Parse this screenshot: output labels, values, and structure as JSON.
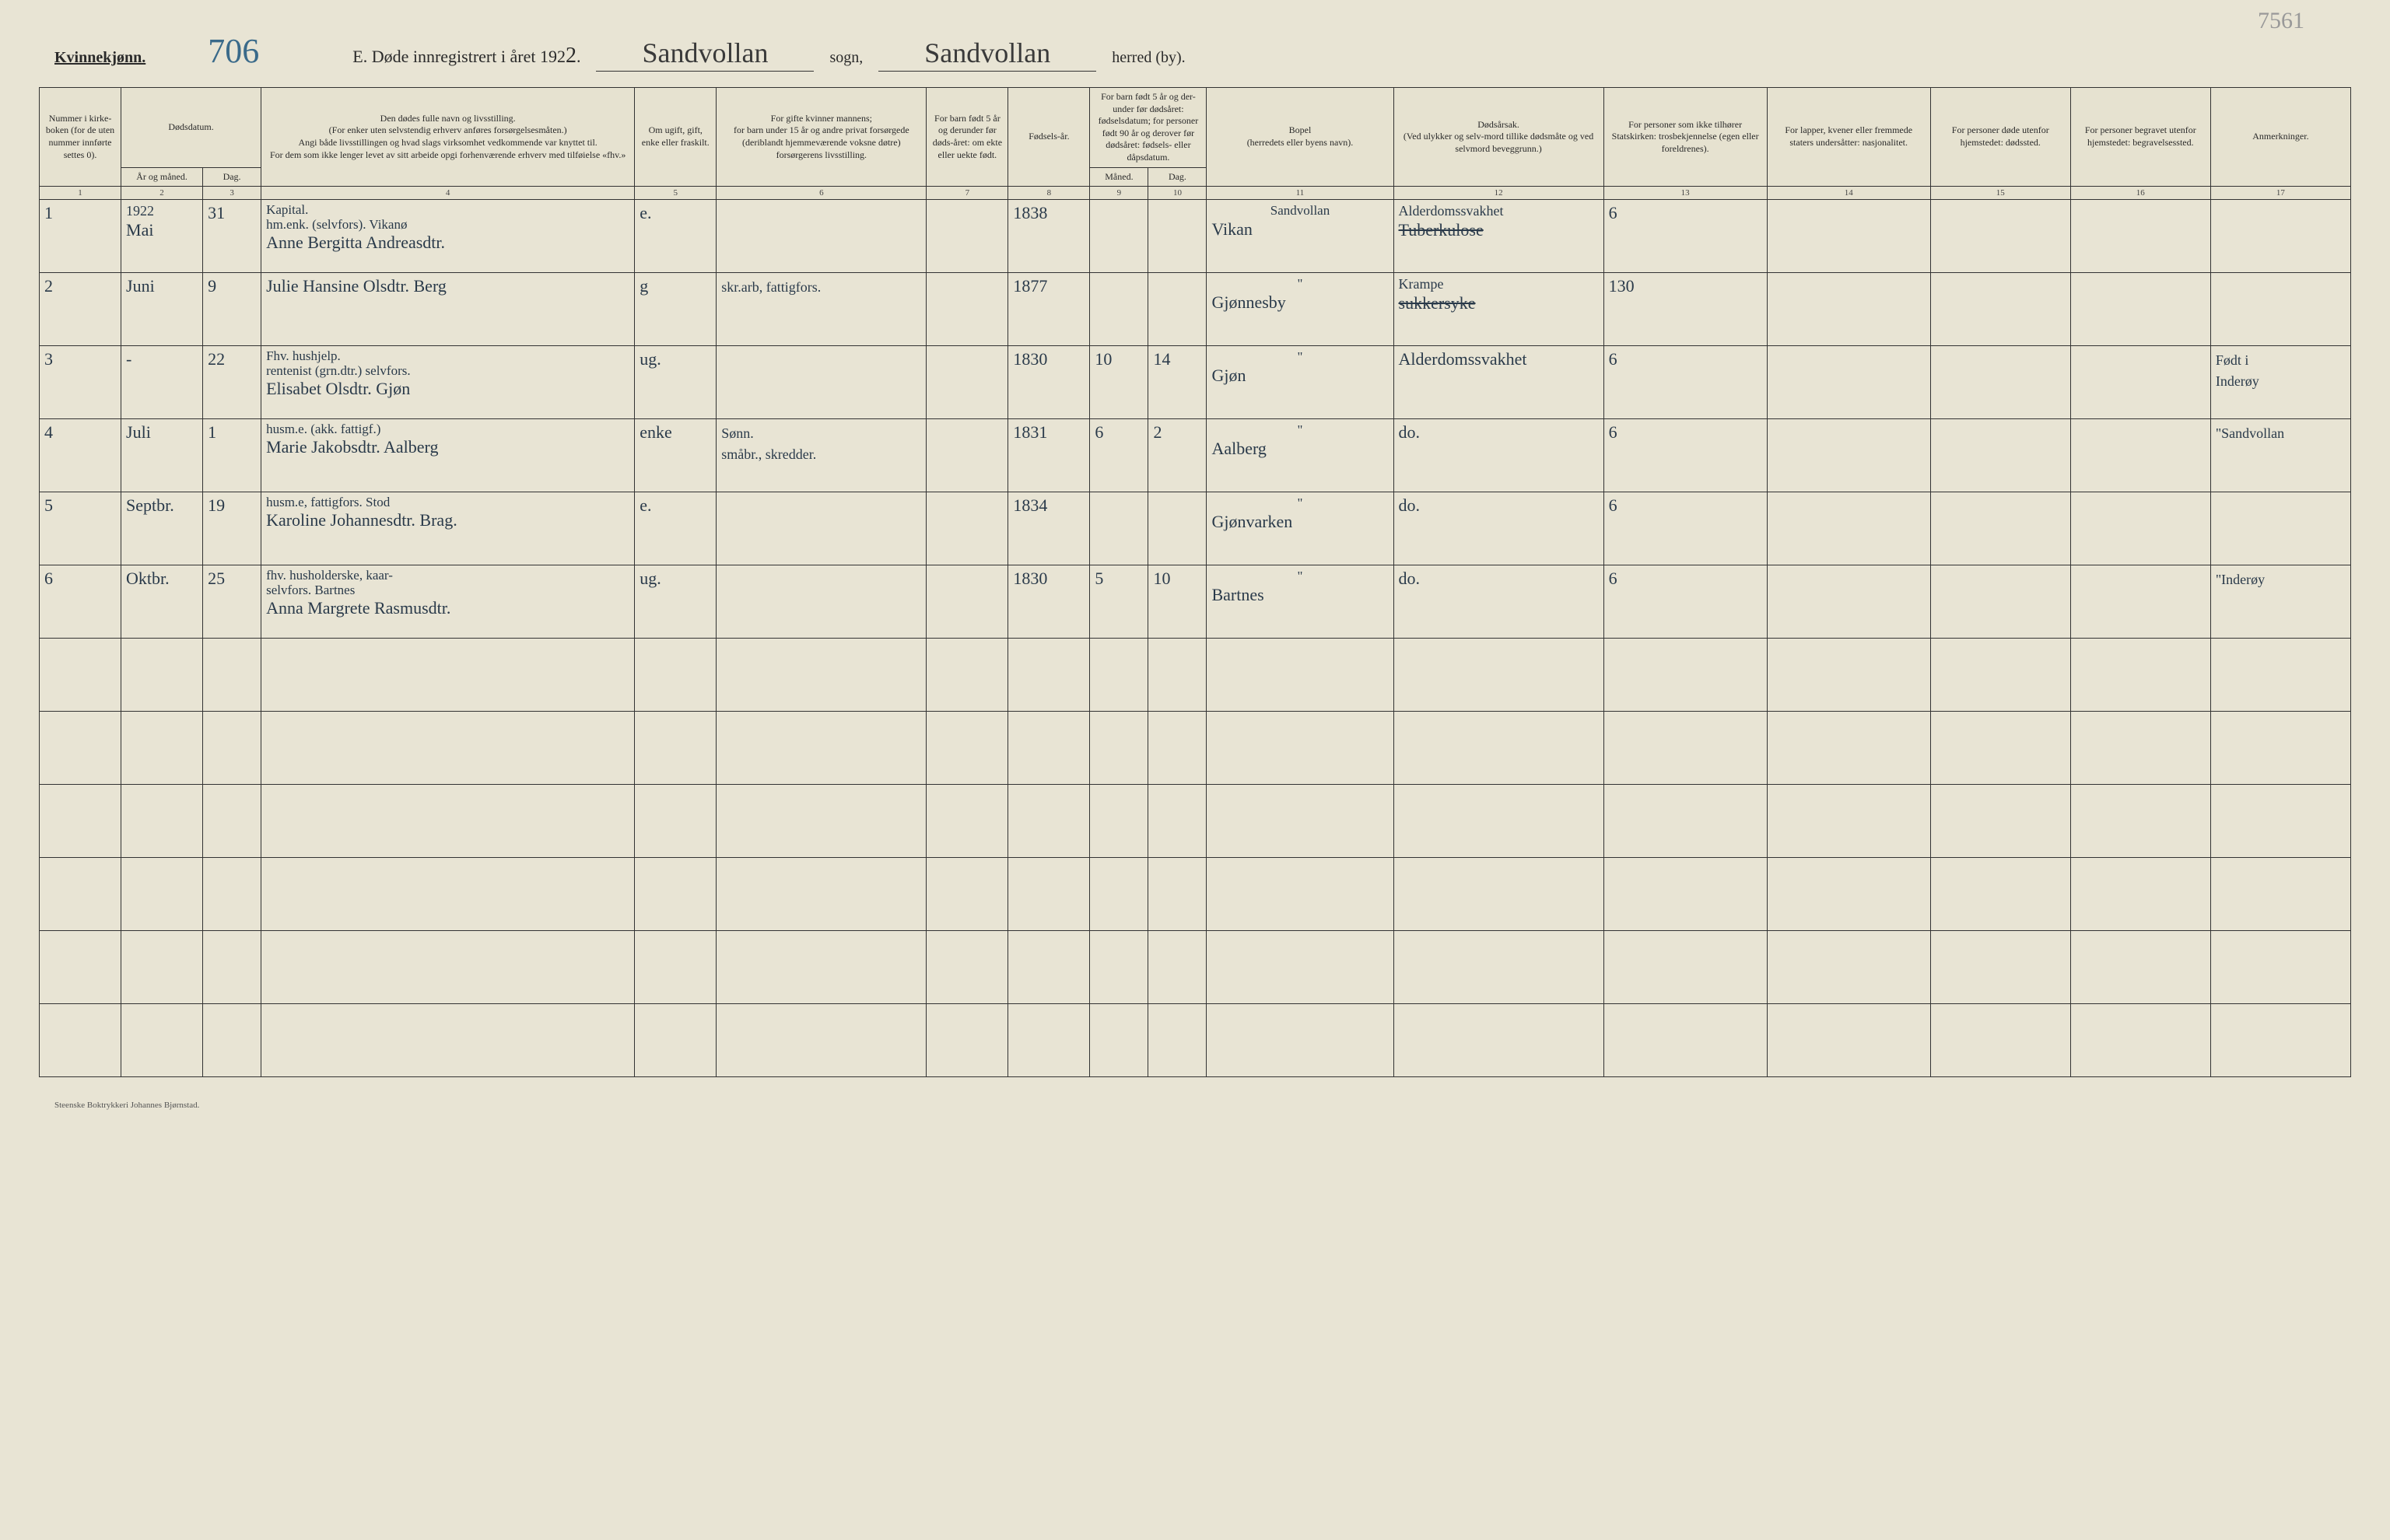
{
  "header": {
    "gender_label": "Kvinnekjønn.",
    "page_number": "706",
    "title_prefix": "E.  Døde innregistrert i året 192",
    "year_suffix": "2",
    "title_period": ".",
    "sogn_value": "Sandvollan",
    "sogn_label": "sogn,",
    "herred_value": "Sandvollan",
    "herred_label": "herred (by).",
    "top_right_note": "7561"
  },
  "columns": {
    "c1": "Nummer i kirke-boken (for de uten nummer innførte settes 0).",
    "c2_3": "Dødsdatum.",
    "c2": "År og måned.",
    "c3": "Dag.",
    "c4": "Den dødes fulle navn og livsstilling.\n(For enker uten selvstendig erhverv anføres forsørgelsesmåten.)\nAngi både livsstillingen og hvad slags virksomhet vedkommende var knyttet til.\nFor dem som ikke lenger levet av sitt arbeide opgi forhenværende erhverv med tilføielse «fhv.»",
    "c5": "Om ugift, gift, enke eller fraskilt.",
    "c6": "For gifte kvinner mannens;\nfor barn under 15 år og andre privat forsørgede (deriblandt hjemmeværende voksne døtre) forsørgerens livsstilling.",
    "c7": "For barn født 5 år og derunder før døds-året: om ekte eller uekte født.",
    "c8": "Fødsels-år.",
    "c9_10": "For barn født 5 år og der-under før dødsåret: fødselsdatum; for personer født 90 år og derover før dødsåret: fødsels- eller dåpsdatum.",
    "c9": "Måned.",
    "c10": "Dag.",
    "c11": "Bopel\n(herredets eller byens navn).",
    "c12": "Dødsårsak.\n(Ved ulykker og selv-mord tillike dødsmåte og ved selvmord beveggrunn.)",
    "c13": "For personer som ikke tilhører Statskirken: trosbekjennelse (egen eller foreldrenes).",
    "c14": "For lapper, kvener eller fremmede staters undersåtter: nasjonalitet.",
    "c15": "For personer døde utenfor hjemstedet: dødssted.",
    "c16": "For personer begravet utenfor hjemstedet: begravelsessted.",
    "c17": "Anmerkninger."
  },
  "colnums": [
    "1",
    "2",
    "3",
    "4",
    "5",
    "6",
    "7",
    "8",
    "9",
    "10",
    "11",
    "12",
    "13",
    "14",
    "15",
    "16",
    "17"
  ],
  "rows": [
    {
      "n": "1",
      "year_month_top": "1922",
      "year_month": "Mai",
      "day": "31",
      "name_top": "Kapital.\nhm.enk. (selvfors). Vikanø",
      "name": "Anne Bergitta Andreasdtr.",
      "status": "e.",
      "spouse": "",
      "birth_year": "1838",
      "b_m": "",
      "b_d": "",
      "place_top": "Sandvollan",
      "place": "Vikan",
      "cause_top": "Alderdomssvakhet",
      "cause": "Tuberkulose",
      "cause_struck": true,
      "c13": "6",
      "remarks": ""
    },
    {
      "n": "2",
      "year_month": "Juni",
      "day": "9",
      "name_top": "",
      "name": "Julie Hansine Olsdtr. Berg",
      "status": "g",
      "spouse": "skr.arb, fattigfors.",
      "birth_year": "1877",
      "b_m": "",
      "b_d": "",
      "place_top": "\"",
      "place": "Gjønnesby",
      "cause_top": "Krampe",
      "cause": "sukkersyke",
      "cause_struck": true,
      "c13": "130",
      "remarks": ""
    },
    {
      "n": "3",
      "year_month": "-",
      "day": "22",
      "name_top": "Fhv. hushjelp.\nrentenist (grn.dtr.) selvfors.",
      "name": "Elisabet Olsdtr. Gjøn",
      "status": "ug.",
      "spouse": "",
      "birth_year": "1830",
      "b_m": "10",
      "b_d": "14",
      "place_top": "\"",
      "place": "Gjøn",
      "cause": "Alderdomssvakhet",
      "c13": "6",
      "remarks": "Født i\nInderøy"
    },
    {
      "n": "4",
      "year_month": "Juli",
      "day": "1",
      "name_top": "husm.e. (akk. fattigf.)",
      "name": "Marie Jakobsdtr. Aalberg",
      "status": "enke",
      "spouse": "Sønn.\nsmåbr., skredder.",
      "birth_year": "1831",
      "b_m": "6",
      "b_d": "2",
      "place_top": "\"",
      "place": "Aalberg",
      "cause": "do.",
      "c13": "6",
      "remarks": "\"Sandvollan"
    },
    {
      "n": "5",
      "year_month": "Septbr.",
      "day": "19",
      "name_top": "husm.e, fattigfors.    Stod",
      "name": "Karoline Johannesdtr. Brag.",
      "status": "e.",
      "spouse": "",
      "birth_year": "1834",
      "b_m": "",
      "b_d": "",
      "place_top": "\"",
      "place": "Gjønvarken",
      "cause": "do.",
      "c13": "6",
      "remarks": ""
    },
    {
      "n": "6",
      "year_month": "Oktbr.",
      "day": "25",
      "name_top": "fhv. husholderske, kaar-\nselvfors.            Bartnes",
      "name": "Anna Margrete Rasmusdtr.",
      "status": "ug.",
      "spouse": "",
      "birth_year": "1830",
      "b_m": "5",
      "b_d": "10",
      "place_top": "\"",
      "place": "Bartnes",
      "cause": "do.",
      "c13": "6",
      "remarks": "\"Inderøy"
    }
  ],
  "empty_row_count": 6,
  "footer": "Steenske Boktrykkeri Johannes Bjørnstad.",
  "col_widths": {
    "c1": "3.5%",
    "c2": "3.5%",
    "c3": "2.5%",
    "c4": "16%",
    "c5": "3.5%",
    "c6": "9%",
    "c7": "3.5%",
    "c8": "3.5%",
    "c9": "2.5%",
    "c10": "2.5%",
    "c11": "8%",
    "c12": "9%",
    "c13": "7%",
    "c14": "7%",
    "c15": "6%",
    "c16": "6%",
    "c17": "6%"
  }
}
